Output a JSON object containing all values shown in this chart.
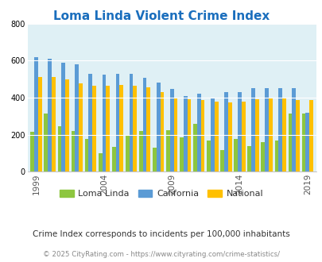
{
  "title": "Loma Linda Violent Crime Index",
  "title_color": "#1a6ebd",
  "subtitle": "Crime Index corresponds to incidents per 100,000 inhabitants",
  "footer": "© 2025 CityRating.com - https://www.cityrating.com/crime-statistics/",
  "years": [
    1999,
    2000,
    2001,
    2002,
    2003,
    2004,
    2005,
    2006,
    2007,
    2008,
    2009,
    2010,
    2011,
    2012,
    2013,
    2014,
    2015,
    2016,
    2017,
    2018,
    2019,
    2020
  ],
  "loma_linda": [
    215,
    315,
    245,
    220,
    175,
    100,
    135,
    200,
    220,
    130,
    225,
    185,
    260,
    170,
    115,
    175,
    140,
    160,
    170,
    315,
    315,
    0
  ],
  "california": [
    620,
    610,
    590,
    580,
    530,
    525,
    530,
    530,
    505,
    480,
    445,
    410,
    420,
    400,
    430,
    430,
    450,
    450,
    450,
    450,
    320,
    0
  ],
  "national": [
    510,
    510,
    500,
    475,
    465,
    465,
    470,
    465,
    455,
    430,
    400,
    390,
    385,
    380,
    375,
    380,
    390,
    395,
    400,
    385,
    385,
    0
  ],
  "loma_linda_color": "#8dc63f",
  "california_color": "#5b9bd5",
  "national_color": "#ffc000",
  "bg_color": "#dff0f5",
  "ylim": [
    0,
    800
  ],
  "yticks": [
    0,
    200,
    400,
    600,
    800
  ],
  "xtick_years": [
    1999,
    2004,
    2009,
    2014,
    2019
  ],
  "bar_width": 0.28,
  "group_width": 0.88,
  "legend_labels": [
    "Loma Linda",
    "California",
    "National"
  ],
  "subtitle_color": "#333333",
  "footer_color": "#888888"
}
